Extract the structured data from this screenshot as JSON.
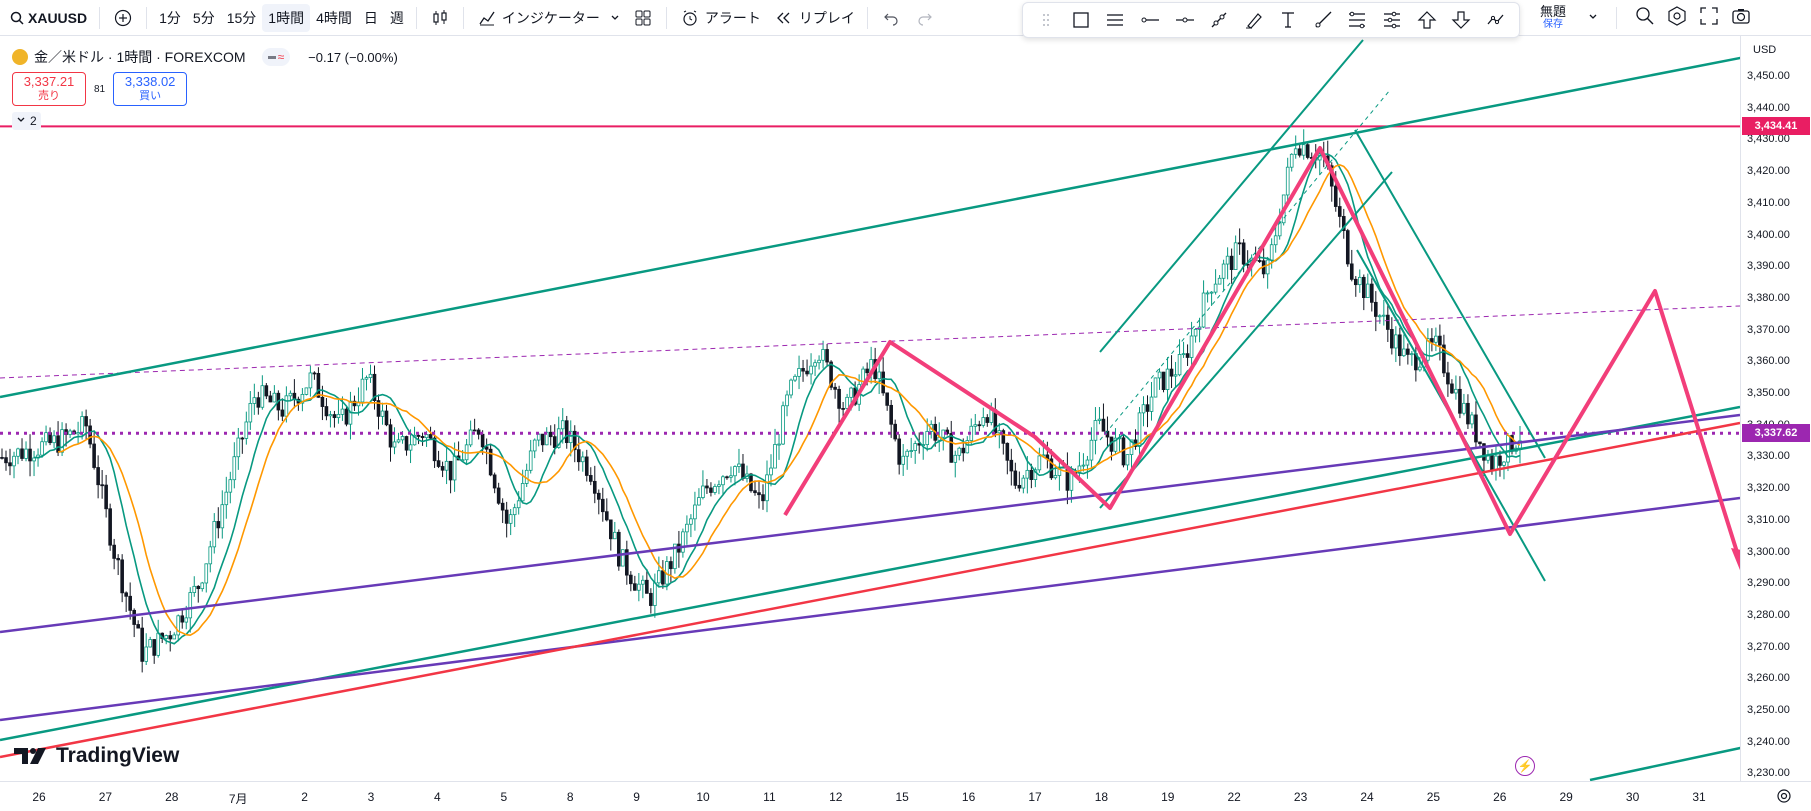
{
  "toolbar": {
    "symbol": "XAUUSD",
    "intervals": [
      "1分",
      "5分",
      "15分",
      "1時間",
      "4時間",
      "日",
      "週"
    ],
    "active_interval": "1時間",
    "indicators_label": "インジケーター",
    "alert_label": "アラート",
    "replay_label": "リプレイ"
  },
  "layout": {
    "name": "無題",
    "status": "保存"
  },
  "legend": {
    "title": "金／米ドル · 1時間 · FOREXCOM",
    "change": "−0.17 (−0.00%)",
    "sell_price": "3,337.21",
    "sell_label": "売り",
    "spread": "81",
    "buy_price": "3,338.02",
    "buy_label": "買い",
    "indicator_count": "2"
  },
  "price_axis": {
    "currency": "USD",
    "ticks": [
      "3,450.00",
      "3,440.00",
      "3,430.00",
      "3,420.00",
      "3,410.00",
      "3,400.00",
      "3,390.00",
      "3,380.00",
      "3,370.00",
      "3,360.00",
      "3,350.00",
      "3,340.00",
      "3,330.00",
      "3,320.00",
      "3,310.00",
      "3,300.00",
      "3,290.00",
      "3,280.00",
      "3,270.00",
      "3,260.00",
      "3,250.00",
      "3,240.00",
      "3,230.00"
    ],
    "horizontal_line_label": "3,434.41",
    "current_price_label": "3,337.62"
  },
  "time_axis": {
    "labels": [
      "26",
      "27",
      "28",
      "7月",
      "2",
      "3",
      "4",
      "5",
      "8",
      "9",
      "10",
      "11",
      "12",
      "15",
      "16",
      "17",
      "18",
      "19",
      "22",
      "23",
      "24",
      "25",
      "26",
      "29",
      "30",
      "31"
    ]
  },
  "chart_data": {
    "type": "candlestick",
    "title": "金／米ドル · 1時間 · FOREXCOM",
    "ylim": [
      3225,
      3460
    ],
    "price_points_hint": [
      [
        0,
        3330
      ],
      [
        2,
        3335
      ],
      [
        3,
        3340
      ],
      [
        4,
        3300
      ],
      [
        5,
        3268
      ],
      [
        6,
        3275
      ],
      [
        7,
        3290
      ],
      [
        8,
        3320
      ],
      [
        9,
        3350
      ],
      [
        10,
        3345
      ],
      [
        11,
        3355
      ],
      [
        12,
        3340
      ],
      [
        13,
        3355
      ],
      [
        14,
        3332
      ],
      [
        15,
        3338
      ],
      [
        16,
        3325
      ],
      [
        17,
        3340
      ],
      [
        18,
        3308
      ],
      [
        19,
        3335
      ],
      [
        20,
        3338
      ],
      [
        21,
        3325
      ],
      [
        22,
        3298
      ],
      [
        23,
        3285
      ],
      [
        24,
        3300
      ],
      [
        25,
        3320
      ],
      [
        26,
        3328
      ],
      [
        27,
        3315
      ],
      [
        28,
        3350
      ],
      [
        29,
        3365
      ],
      [
        30,
        3345
      ],
      [
        31,
        3360
      ],
      [
        32,
        3328
      ],
      [
        33,
        3340
      ],
      [
        34,
        3330
      ],
      [
        35,
        3346
      ],
      [
        36,
        3322
      ],
      [
        37,
        3330
      ],
      [
        38,
        3322
      ],
      [
        39,
        3340
      ],
      [
        40,
        3330
      ],
      [
        41,
        3352
      ],
      [
        42,
        3360
      ],
      [
        43,
        3385
      ],
      [
        44,
        3395
      ],
      [
        45,
        3388
      ],
      [
        46,
        3430
      ],
      [
        47,
        3425
      ],
      [
        48,
        3390
      ],
      [
        49,
        3375
      ],
      [
        50,
        3360
      ],
      [
        51,
        3365
      ],
      [
        52,
        3345
      ],
      [
        53,
        3328
      ],
      [
        54,
        3337
      ]
    ],
    "horizontal_level": 3434.41,
    "current_price": 3337.62,
    "colors": {
      "up": "#089981",
      "down": "#131722",
      "ma_fast": "#ff9800",
      "ma_slow": "#089981",
      "hline": "#e91e63"
    }
  }
}
